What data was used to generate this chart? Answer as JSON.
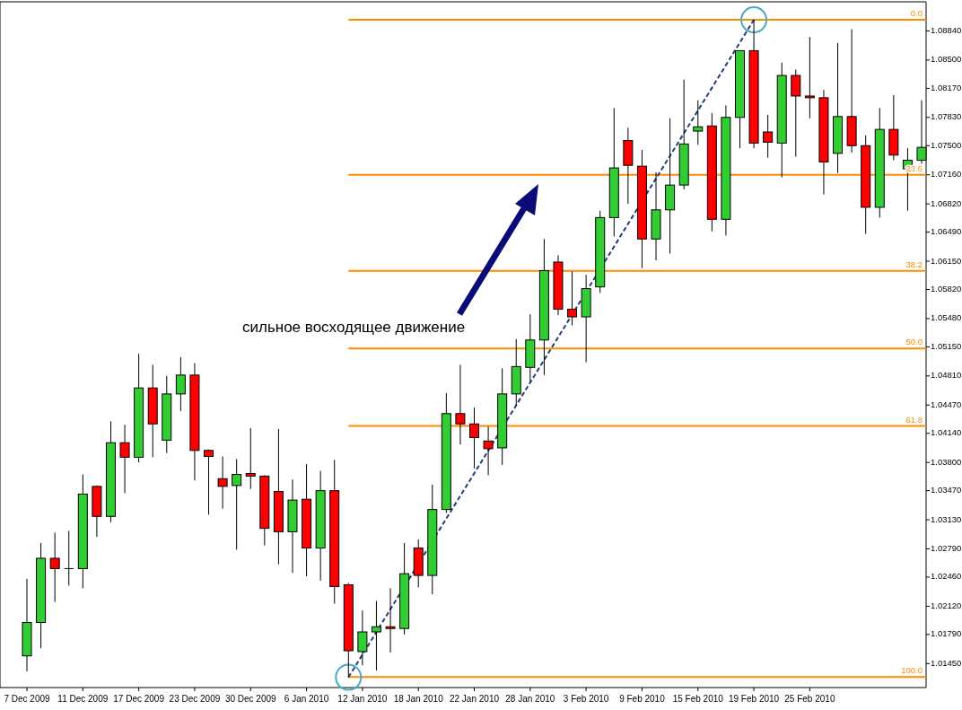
{
  "chart_data": {
    "type": "candlestick",
    "annotations": [
      "сильное восходящее движение"
    ],
    "categories": [
      "7 Dec 2009",
      null,
      null,
      null,
      "11 Dec 2009",
      null,
      null,
      null,
      "17 Dec 2009",
      null,
      null,
      null,
      "23 Dec 2009",
      null,
      null,
      null,
      "30 Dec 2009",
      null,
      null,
      null,
      "6 Jan 2010",
      null,
      null,
      null,
      "12 Jan 2010",
      null,
      null,
      null,
      "18 Jan 2010",
      null,
      null,
      null,
      "22 Jan 2010",
      null,
      null,
      null,
      "28 Jan 2010",
      null,
      null,
      null,
      "3 Feb 2010",
      null,
      null,
      null,
      "9 Feb 2010",
      null,
      null,
      null,
      "15 Feb 2010",
      null,
      null,
      null,
      "19 Feb 2010",
      null,
      null,
      null,
      "25 Feb 2010",
      null,
      null,
      null,
      null,
      null,
      null,
      null,
      null
    ],
    "ohlc": [
      [
        1.0154,
        1.0244,
        1.0136,
        1.0193
      ],
      [
        1.0193,
        1.0286,
        1.0163,
        1.0268
      ],
      [
        1.0268,
        1.0298,
        1.0217,
        1.0256
      ],
      [
        1.0256,
        1.03,
        1.0236,
        1.0256
      ],
      [
        1.0256,
        1.0366,
        1.0233,
        1.0343
      ],
      [
        1.0352,
        1.0353,
        1.0293,
        1.0317
      ],
      [
        1.0317,
        1.0428,
        1.031,
        1.0403
      ],
      [
        1.0403,
        1.0424,
        1.0344,
        1.0386
      ],
      [
        1.0386,
        1.0507,
        1.038,
        1.0467
      ],
      [
        1.0467,
        1.0494,
        1.0386,
        1.0425
      ],
      [
        1.0406,
        1.0481,
        1.0391,
        1.046
      ],
      [
        1.046,
        1.0503,
        1.044,
        1.0482
      ],
      [
        1.0482,
        1.0496,
        1.0359,
        1.0394
      ],
      [
        1.0394,
        1.0395,
        1.0319,
        1.0387
      ],
      [
        1.0361,
        1.0387,
        1.0326,
        1.0352
      ],
      [
        1.0353,
        1.0384,
        1.0278,
        1.0366
      ],
      [
        1.0367,
        1.042,
        1.0349,
        1.0364
      ],
      [
        1.0364,
        1.0365,
        1.0283,
        1.0303
      ],
      [
        1.0346,
        1.0419,
        1.0261,
        1.0299
      ],
      [
        1.0299,
        1.036,
        1.0251,
        1.0336
      ],
      [
        1.0337,
        1.0378,
        1.0247,
        1.028
      ],
      [
        1.028,
        1.037,
        1.0242,
        1.0347
      ],
      [
        1.0347,
        1.0383,
        1.0215,
        1.0235
      ],
      [
        1.0237,
        1.0239,
        1.0129,
        1.016
      ],
      [
        1.0159,
        1.0207,
        1.0143,
        1.0182
      ],
      [
        1.0182,
        1.0218,
        1.0137,
        1.0188
      ],
      [
        1.0188,
        1.0233,
        1.0158,
        1.0186
      ],
      [
        1.0186,
        1.0286,
        1.0179,
        1.025
      ],
      [
        1.028,
        1.029,
        1.0234,
        1.0248
      ],
      [
        1.0248,
        1.0354,
        1.0226,
        1.0325
      ],
      [
        1.0325,
        1.0461,
        1.0321,
        1.0437
      ],
      [
        1.0437,
        1.0494,
        1.0401,
        1.0425
      ],
      [
        1.0425,
        1.0444,
        1.0373,
        1.0409
      ],
      [
        1.0405,
        1.0422,
        1.0365,
        1.0396
      ],
      [
        1.0397,
        1.049,
        1.0377,
        1.046
      ],
      [
        1.046,
        1.0524,
        1.0446,
        1.0492
      ],
      [
        1.0491,
        1.0553,
        1.0474,
        1.0523
      ],
      [
        1.0523,
        1.0641,
        1.0482,
        1.0604
      ],
      [
        1.0614,
        1.0622,
        1.0552,
        1.0559
      ],
      [
        1.0559,
        1.0603,
        1.054,
        1.055
      ],
      [
        1.055,
        1.0599,
        1.0497,
        1.0583
      ],
      [
        1.0585,
        1.0674,
        1.0578,
        1.0666
      ],
      [
        1.0666,
        1.0794,
        1.0644,
        1.0724
      ],
      [
        1.0756,
        1.0771,
        1.0682,
        1.0727
      ],
      [
        1.0726,
        1.0745,
        1.0607,
        1.0641
      ],
      [
        1.0641,
        1.0719,
        1.0616,
        1.0675
      ],
      [
        1.0675,
        1.0782,
        1.0624,
        1.0704
      ],
      [
        1.0704,
        1.0827,
        1.0699,
        1.0752
      ],
      [
        1.0767,
        1.0803,
        1.0751,
        1.0772
      ],
      [
        1.0773,
        1.0788,
        1.065,
        1.0664
      ],
      [
        1.0664,
        1.0797,
        1.0645,
        1.0783
      ],
      [
        1.0783,
        1.0861,
        1.0747,
        1.0861
      ],
      [
        1.0861,
        1.0897,
        1.0747,
        1.0753
      ],
      [
        1.0766,
        1.0786,
        1.0736,
        1.0754
      ],
      [
        1.0753,
        1.0847,
        1.0713,
        1.0832
      ],
      [
        1.0832,
        1.0839,
        1.0737,
        1.0808
      ],
      [
        1.0808,
        1.0877,
        1.0782,
        1.0806
      ],
      [
        1.0806,
        1.0815,
        1.0693,
        1.0731
      ],
      [
        1.0741,
        1.087,
        1.0718,
        1.0784
      ],
      [
        1.0784,
        1.0886,
        1.0742,
        1.075
      ],
      [
        1.075,
        1.0762,
        1.0647,
        1.0678
      ],
      [
        1.0678,
        1.0794,
        1.0666,
        1.0769
      ],
      [
        1.0769,
        1.0809,
        1.0733,
        1.0739
      ],
      [
        1.0723,
        1.0747,
        1.0674,
        1.0733
      ],
      [
        1.0733,
        1.0803,
        1.0729,
        1.0748
      ]
    ],
    "colors": [
      "#32cd32",
      "#32cd32",
      "#ff0000",
      "#000000",
      "#32cd32",
      "#ff0000",
      "#32cd32",
      "#ff0000",
      "#32cd32",
      "#ff0000",
      "#32cd32",
      "#32cd32",
      "#ff0000",
      "#ff0000",
      "#ff0000",
      "#32cd32",
      "#ff0000",
      "#ff0000",
      "#ff0000",
      "#32cd32",
      "#ff0000",
      "#32cd32",
      "#ff0000",
      "#ff0000",
      "#32cd32",
      "#32cd32",
      "#ff0000",
      "#32cd32",
      "#ff0000",
      "#32cd32",
      "#32cd32",
      "#ff0000",
      "#ff0000",
      "#ff0000",
      "#32cd32",
      "#32cd32",
      "#32cd32",
      "#32cd32",
      "#ff0000",
      "#ff0000",
      "#32cd32",
      "#32cd32",
      "#32cd32",
      "#ff0000",
      "#ff0000",
      "#32cd32",
      "#32cd32",
      "#32cd32",
      "#32cd32",
      "#ff0000",
      "#32cd32",
      "#32cd32",
      "#ff0000",
      "#ff0000",
      "#32cd32",
      "#ff0000",
      "#ff0000",
      "#ff0000",
      "#32cd32",
      "#ff0000",
      "#ff0000",
      "#32cd32",
      "#ff0000",
      "#32cd32",
      "#32cd32"
    ],
    "series": [
      {
        "type": "line",
        "color": "#1f3f7a",
        "line_style": "dashed",
        "marker": "circle",
        "values": [
          null,
          null,
          null,
          null,
          null,
          null,
          null,
          null,
          null,
          null,
          null,
          null,
          null,
          null,
          null,
          null,
          null,
          null,
          null,
          null,
          null,
          null,
          null,
          1.0129,
          null,
          null,
          null,
          null,
          null,
          null,
          null,
          null,
          null,
          null,
          null,
          null,
          null,
          null,
          null,
          null,
          null,
          null,
          null,
          null,
          null,
          null,
          null,
          null,
          null,
          null,
          null,
          null,
          1.0897,
          null,
          null,
          null,
          null,
          null,
          null,
          null,
          null,
          null,
          null,
          null,
          null
        ]
      }
    ],
    "ylim": [
      1.0117,
      1.0917
    ],
    "yticks": [
      {
        "value": 1.0145,
        "label": "1.01450"
      },
      {
        "value": 1.0179,
        "label": "1.01790"
      },
      {
        "value": 1.0212,
        "label": "1.02120"
      },
      {
        "value": 1.0246,
        "label": "1.02460"
      },
      {
        "value": 1.0279,
        "label": "1.02790"
      },
      {
        "value": 1.0313,
        "label": "1.03130"
      },
      {
        "value": 1.0347,
        "label": "1.03470"
      },
      {
        "value": 1.038,
        "label": "1.03800"
      },
      {
        "value": 1.0414,
        "label": "1.04140"
      },
      {
        "value": 1.0447,
        "label": "1.04470"
      },
      {
        "value": 1.0481,
        "label": "1.04810"
      },
      {
        "value": 1.0515,
        "label": "1.05150"
      },
      {
        "value": 1.0548,
        "label": "1.05480"
      },
      {
        "value": 1.0582,
        "label": "1.05820"
      },
      {
        "value": 1.0615,
        "label": "1.06150"
      },
      {
        "value": 1.0649,
        "label": "1.06490"
      },
      {
        "value": 1.0682,
        "label": "1.06820"
      },
      {
        "value": 1.0716,
        "label": "1.07160"
      },
      {
        "value": 1.075,
        "label": "1.07500"
      },
      {
        "value": 1.0783,
        "label": "1.07830"
      },
      {
        "value": 1.0817,
        "label": "1.08170"
      },
      {
        "value": 1.085,
        "label": "1.08500"
      },
      {
        "value": 1.0884,
        "label": "1.08840"
      }
    ],
    "y2lim": [
      101.6,
      -2.6
    ],
    "ref_lines": [
      {
        "axis": "y2",
        "value": 0.0,
        "label": "0.0",
        "color": "#ff8c00"
      },
      {
        "axis": "y2",
        "value": 23.6,
        "label": "23.6",
        "color": "#ff8c00"
      },
      {
        "axis": "y2",
        "value": 38.2,
        "label": "38.2",
        "color": "#ff8c00"
      },
      {
        "axis": "y2",
        "value": 50.0,
        "label": "50.0",
        "color": "#ff8c00"
      },
      {
        "axis": "y2",
        "value": 61.8,
        "label": "61.8",
        "color": "#ff8c00"
      },
      {
        "axis": "y2",
        "value": 100.0,
        "label": "100.0",
        "color": "#ff8c00"
      }
    ]
  }
}
